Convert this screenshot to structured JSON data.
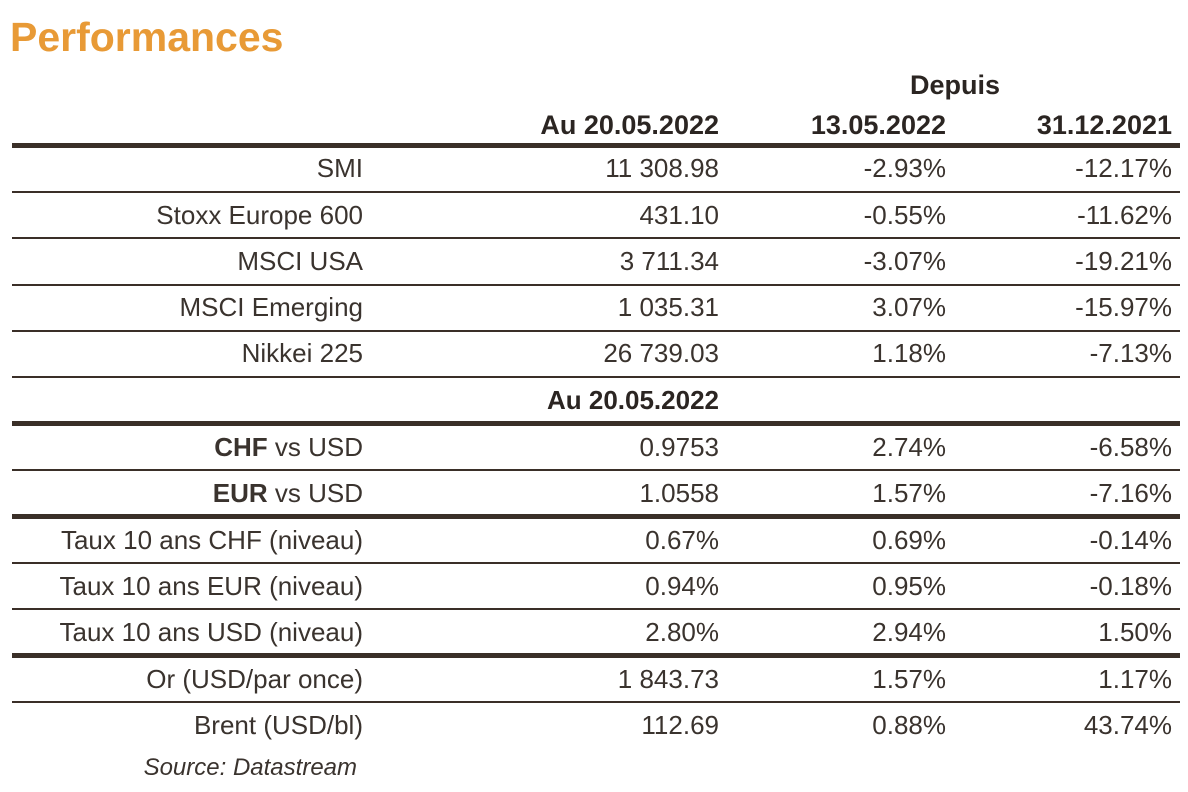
{
  "title": "Performances",
  "header": {
    "depuis": "Depuis",
    "col_current": "Au 20.05.2022",
    "col_week": "13.05.2022",
    "col_ytd": "31.12.2021"
  },
  "equities": [
    {
      "label": "SMI",
      "current": "11 308.98",
      "week": "-2.93%",
      "ytd": "-12.17%"
    },
    {
      "label": "Stoxx Europe 600",
      "current": "431.10",
      "week": "-0.55%",
      "ytd": "-11.62%"
    },
    {
      "label": "MSCI USA",
      "current": "3 711.34",
      "week": "-3.07%",
      "ytd": "-19.21%"
    },
    {
      "label": "MSCI Emerging",
      "current": "1 035.31",
      "week": "3.07%",
      "ytd": "-15.97%"
    },
    {
      "label": "Nikkei 225",
      "current": "26 739.03",
      "week": "1.18%",
      "ytd": "-7.13%"
    }
  ],
  "subheader": "Au 20.05.2022",
  "fx": [
    {
      "label_bold": "CHF",
      "label_rest": " vs USD",
      "current": "0.9753",
      "week": "2.74%",
      "ytd": "-6.58%"
    },
    {
      "label_bold": "EUR",
      "label_rest": " vs USD",
      "current": "1.0558",
      "week": "1.57%",
      "ytd": "-7.16%"
    }
  ],
  "rates": [
    {
      "label": "Taux 10 ans CHF (niveau)",
      "current": "0.67%",
      "week": "0.69%",
      "ytd": "-0.14%"
    },
    {
      "label": "Taux 10 ans EUR (niveau)",
      "current": "0.94%",
      "week": "0.95%",
      "ytd": "-0.18%"
    },
    {
      "label": "Taux 10 ans USD (niveau)",
      "current": "2.80%",
      "week": "2.94%",
      "ytd": "1.50%"
    }
  ],
  "commodities": [
    {
      "label": "Or (USD/par once)",
      "current": "1 843.73",
      "week": "1.57%",
      "ytd": "1.17%"
    },
    {
      "label": "Brent (USD/bl)",
      "current": "112.69",
      "week": "0.88%",
      "ytd": "43.74%"
    }
  ],
  "source": "Source: Datastream",
  "colors": {
    "title": "#e89a36",
    "rule": "#3a2f28"
  }
}
